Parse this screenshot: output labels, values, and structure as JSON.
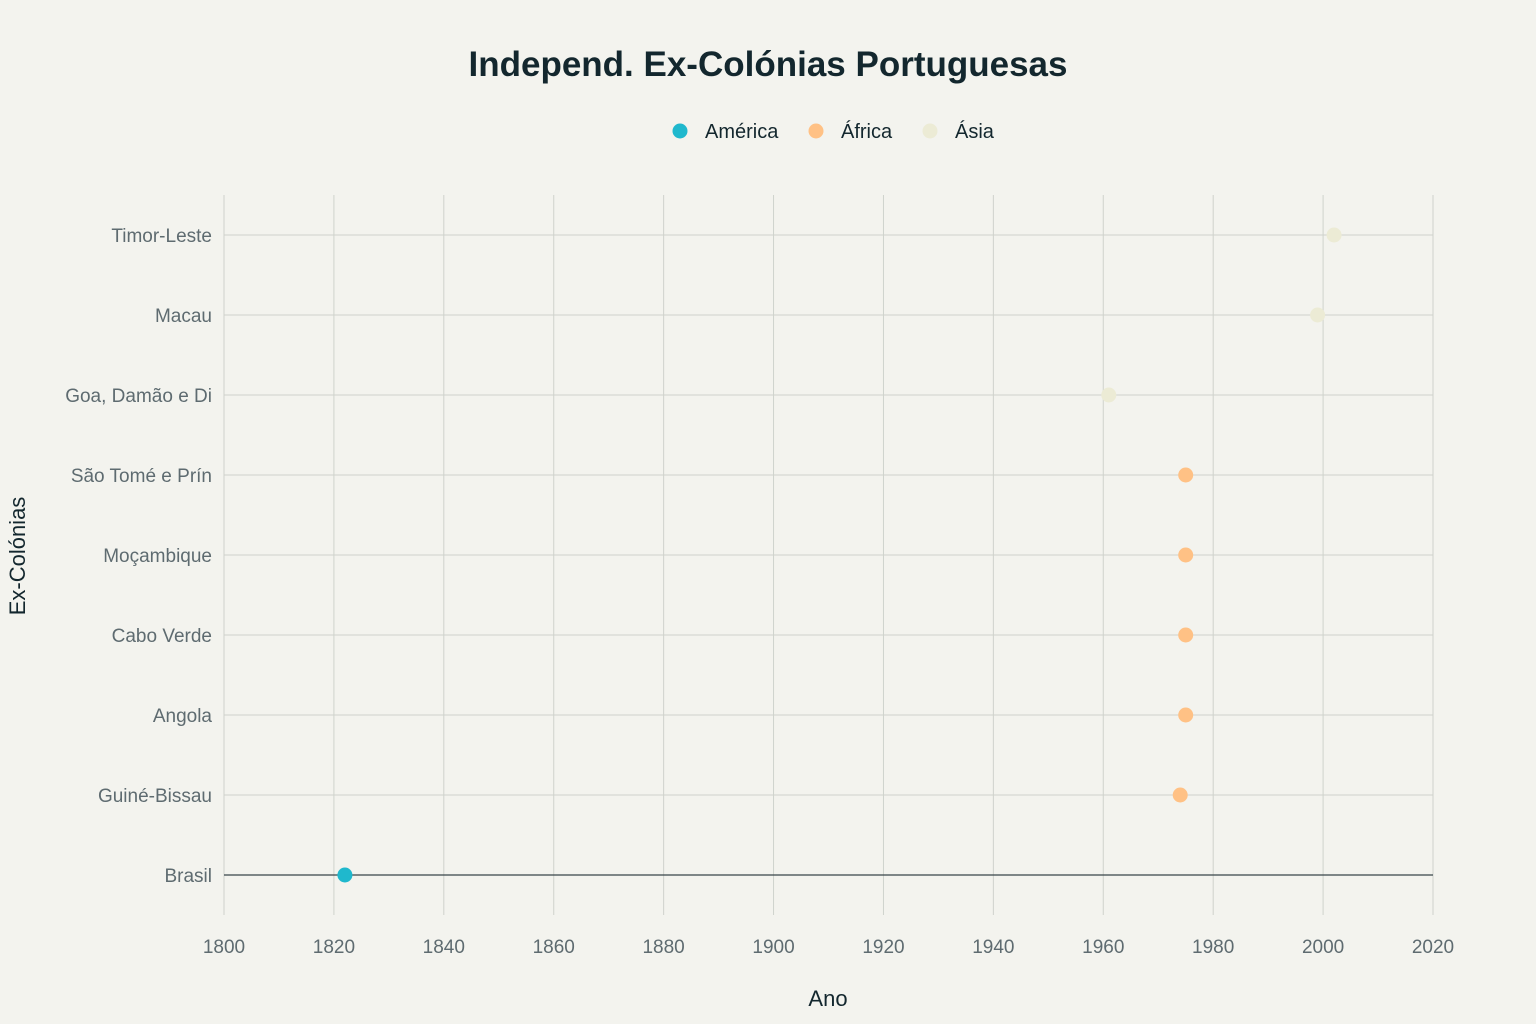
{
  "chart_data": {
    "type": "scatter",
    "title": "Independ. Ex-Colónias Portuguesas",
    "xlabel": "Ano",
    "ylabel": "Ex-Colónias",
    "xlim": [
      1800,
      2020
    ],
    "xticks": [
      1800,
      1820,
      1840,
      1860,
      1880,
      1900,
      1920,
      1940,
      1960,
      1980,
      2000,
      2020
    ],
    "categories": [
      "Brasil",
      "Guiné-Bissau",
      "Angola",
      "Cabo Verde",
      "Moçambique",
      "São Tomé e Prín",
      "Goa, Damão e Di",
      "Macau",
      "Timor-Leste"
    ],
    "grid": true,
    "legend_position": "top-center",
    "series": [
      {
        "name": "América",
        "color": "#1fb8cd",
        "points": [
          {
            "y": "Brasil",
            "x": 1822
          }
        ]
      },
      {
        "name": "África",
        "color": "#ffc185",
        "points": [
          {
            "y": "Guiné-Bissau",
            "x": 1974
          },
          {
            "y": "Angola",
            "x": 1975
          },
          {
            "y": "Cabo Verde",
            "x": 1975
          },
          {
            "y": "Moçambique",
            "x": 1975
          },
          {
            "y": "São Tomé e Prín",
            "x": 1975
          }
        ]
      },
      {
        "name": "Ásia",
        "color": "#ecebd5",
        "points": [
          {
            "y": "Goa, Damão e Di",
            "x": 1961
          },
          {
            "y": "Macau",
            "x": 1999
          },
          {
            "y": "Timor-Leste",
            "x": 2002
          }
        ]
      }
    ]
  }
}
